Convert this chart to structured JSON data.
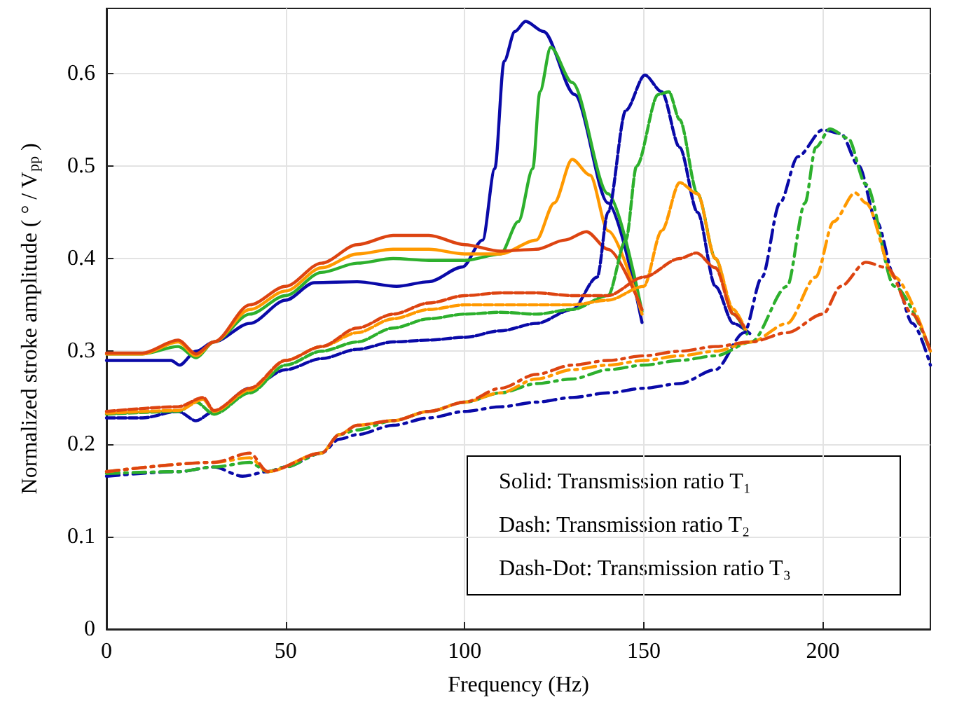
{
  "chart_data": {
    "type": "line",
    "xlabel": "Frequency (Hz)",
    "ylabel": "Normalized stroke amplitude ( ° / V$_{pp}$ )",
    "xlim": [
      0,
      230
    ],
    "xticks": [
      0,
      50,
      100,
      150,
      200
    ],
    "ylim": [
      0,
      0.67
    ],
    "yticks": [
      0,
      0.1,
      0.2,
      0.3,
      0.4,
      0.5,
      0.6
    ],
    "grid": true,
    "marker": "none",
    "annotations": [
      "Solid: Transmission ratio T₁",
      "Dash: Transmission ratio T₂",
      "Dash-Dot: Transmission ratio T₃"
    ],
    "series": [
      {
        "color": "#0a0aa8",
        "line_style": "solid",
        "x": [
          0,
          10,
          18,
          20.4,
          25,
          30,
          40,
          50,
          58,
          70,
          81,
          90,
          99.4,
          105,
          108.4,
          111,
          114,
          117,
          122,
          130.7,
          140,
          149.5
        ],
        "values": [
          0.29,
          0.29,
          0.29,
          0.285,
          0.3,
          0.31,
          0.33,
          0.355,
          0.374,
          0.375,
          0.37,
          0.375,
          0.391,
          0.42,
          0.497,
          0.613,
          0.645,
          0.656,
          0.645,
          0.577,
          0.46,
          0.331
        ]
      },
      {
        "color": "#2db02d",
        "line_style": "solid",
        "x": [
          0,
          10,
          20,
          25,
          30,
          40,
          50,
          60,
          70,
          80,
          90,
          100,
          110,
          115,
          119,
          121,
          124,
          130,
          140,
          149.5
        ],
        "values": [
          0.297,
          0.297,
          0.305,
          0.293,
          0.31,
          0.34,
          0.36,
          0.385,
          0.395,
          0.4,
          0.398,
          0.398,
          0.405,
          0.44,
          0.497,
          0.58,
          0.628,
          0.59,
          0.47,
          0.343
        ]
      },
      {
        "color": "#ff9900",
        "line_style": "solid",
        "x": [
          0,
          10,
          20,
          25,
          30,
          40,
          50,
          60,
          70,
          80,
          90,
          100,
          110,
          120,
          125,
          130,
          135,
          140,
          149.5
        ],
        "values": [
          0.297,
          0.297,
          0.31,
          0.295,
          0.31,
          0.345,
          0.365,
          0.39,
          0.405,
          0.41,
          0.41,
          0.405,
          0.405,
          0.42,
          0.46,
          0.507,
          0.49,
          0.43,
          0.34
        ]
      },
      {
        "color": "#dd4411",
        "line_style": "solid",
        "x": [
          0,
          10,
          20,
          25,
          30,
          40,
          50,
          60,
          70,
          80,
          90,
          100,
          110,
          120,
          128,
          134,
          140,
          149.5
        ],
        "values": [
          0.298,
          0.298,
          0.312,
          0.297,
          0.31,
          0.35,
          0.37,
          0.395,
          0.415,
          0.425,
          0.425,
          0.415,
          0.408,
          0.41,
          0.42,
          0.429,
          0.41,
          0.345
        ]
      },
      {
        "color": "#0a0aa8",
        "line_style": "dashed",
        "x": [
          0,
          10,
          20,
          25,
          30,
          40,
          50,
          60,
          70,
          80,
          90,
          100,
          110,
          120,
          130,
          137,
          140,
          145,
          150.3,
          155,
          160,
          165,
          170,
          175,
          179.6
        ],
        "values": [
          0.228,
          0.228,
          0.235,
          0.225,
          0.235,
          0.26,
          0.28,
          0.292,
          0.302,
          0.31,
          0.312,
          0.315,
          0.322,
          0.33,
          0.345,
          0.38,
          0.45,
          0.56,
          0.598,
          0.58,
          0.52,
          0.45,
          0.37,
          0.33,
          0.319
        ]
      },
      {
        "color": "#2db02d",
        "line_style": "dashed",
        "x": [
          0,
          20,
          25,
          30,
          40,
          50,
          60,
          70,
          80,
          90,
          100,
          110,
          120,
          130,
          140,
          145,
          148,
          154,
          157,
          160,
          165,
          170,
          175,
          179
        ],
        "values": [
          0.232,
          0.235,
          0.245,
          0.232,
          0.255,
          0.285,
          0.3,
          0.31,
          0.325,
          0.335,
          0.34,
          0.342,
          0.34,
          0.345,
          0.36,
          0.42,
          0.5,
          0.577,
          0.58,
          0.55,
          0.47,
          0.4,
          0.34,
          0.317
        ]
      },
      {
        "color": "#ff9900",
        "line_style": "dashed",
        "x": [
          0,
          20,
          27,
          30,
          40,
          50,
          60,
          70,
          80,
          90,
          100,
          110,
          120,
          130,
          140,
          150,
          155,
          160,
          165,
          170,
          175,
          178.4
        ],
        "values": [
          0.233,
          0.236,
          0.248,
          0.235,
          0.258,
          0.29,
          0.305,
          0.32,
          0.335,
          0.345,
          0.35,
          0.35,
          0.35,
          0.35,
          0.355,
          0.37,
          0.43,
          0.482,
          0.47,
          0.4,
          0.345,
          0.323
        ]
      },
      {
        "color": "#dd4411",
        "line_style": "dashed",
        "x": [
          0,
          20,
          27,
          30,
          40,
          50,
          60,
          70,
          80,
          90,
          100,
          110,
          120,
          130,
          140,
          150,
          160,
          164.7,
          170,
          175,
          178
        ],
        "values": [
          0.235,
          0.24,
          0.25,
          0.236,
          0.26,
          0.29,
          0.305,
          0.325,
          0.34,
          0.352,
          0.36,
          0.363,
          0.363,
          0.36,
          0.36,
          0.38,
          0.4,
          0.406,
          0.39,
          0.34,
          0.326
        ]
      },
      {
        "color": "#0a0aa8",
        "line_style": "dashdot",
        "x": [
          0,
          20,
          30,
          38,
          45,
          50,
          60,
          65,
          70,
          80,
          90,
          100,
          110,
          120,
          130,
          140,
          150,
          160,
          170,
          178,
          183,
          188,
          193,
          200,
          205,
          210,
          215,
          220,
          225,
          230
        ],
        "values": [
          0.165,
          0.17,
          0.175,
          0.165,
          0.17,
          0.175,
          0.19,
          0.205,
          0.21,
          0.22,
          0.228,
          0.235,
          0.24,
          0.245,
          0.25,
          0.255,
          0.26,
          0.265,
          0.28,
          0.32,
          0.38,
          0.46,
          0.51,
          0.539,
          0.535,
          0.5,
          0.44,
          0.38,
          0.33,
          0.285
        ]
      },
      {
        "color": "#2db02d",
        "line_style": "dashdot",
        "x": [
          0,
          20,
          30,
          40,
          45,
          50,
          60,
          65,
          70,
          80,
          90,
          100,
          110,
          120,
          130,
          140,
          150,
          160,
          170,
          180,
          190,
          195,
          198,
          202,
          207,
          212,
          220,
          230
        ],
        "values": [
          0.168,
          0.17,
          0.175,
          0.18,
          0.17,
          0.175,
          0.19,
          0.21,
          0.215,
          0.225,
          0.235,
          0.245,
          0.255,
          0.265,
          0.27,
          0.28,
          0.285,
          0.29,
          0.295,
          0.31,
          0.37,
          0.46,
          0.52,
          0.54,
          0.53,
          0.48,
          0.37,
          0.3
        ]
      },
      {
        "color": "#ff9900",
        "line_style": "dashdot",
        "x": [
          0,
          30,
          40,
          45,
          60,
          65,
          70,
          80,
          90,
          100,
          110,
          120,
          130,
          140,
          150,
          160,
          170,
          180,
          190,
          198,
          203,
          209,
          212,
          220,
          230
        ],
        "values": [
          0.17,
          0.18,
          0.185,
          0.17,
          0.19,
          0.21,
          0.22,
          0.225,
          0.235,
          0.245,
          0.255,
          0.27,
          0.28,
          0.285,
          0.29,
          0.295,
          0.3,
          0.31,
          0.33,
          0.38,
          0.44,
          0.471,
          0.46,
          0.38,
          0.3
        ]
      },
      {
        "color": "#dd4411",
        "line_style": "dashdot",
        "x": [
          0,
          30,
          40,
          45,
          60,
          65,
          70,
          80,
          90,
          100,
          110,
          120,
          130,
          140,
          150,
          160,
          170,
          180,
          190,
          200,
          205,
          212,
          218,
          225,
          230
        ],
        "values": [
          0.17,
          0.18,
          0.19,
          0.17,
          0.19,
          0.21,
          0.22,
          0.225,
          0.235,
          0.245,
          0.26,
          0.275,
          0.285,
          0.29,
          0.295,
          0.3,
          0.305,
          0.31,
          0.32,
          0.34,
          0.37,
          0.396,
          0.39,
          0.34,
          0.3
        ]
      }
    ]
  }
}
